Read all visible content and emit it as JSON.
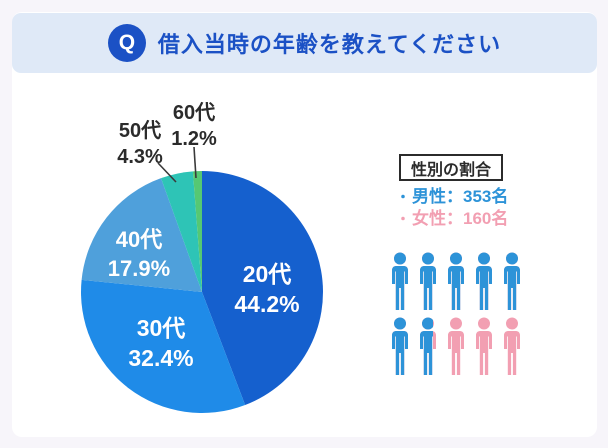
{
  "header": {
    "q_badge": "Q",
    "title": "借入当時の年齢を教えてください"
  },
  "chart_data": {
    "type": "pie",
    "title": "借入当時の年齢を教えてください",
    "unit": "%",
    "start_angle_deg": 0,
    "direction": "clockwise",
    "slices": [
      {
        "label": "20代",
        "value": 44.2,
        "pct_label": "44.2%",
        "color": "#1560ce",
        "label_position": "inside"
      },
      {
        "label": "30代",
        "value": 32.4,
        "pct_label": "32.4%",
        "color": "#1f8be8",
        "label_position": "inside"
      },
      {
        "label": "40代",
        "value": 17.9,
        "pct_label": "17.9%",
        "color": "#4fa0db",
        "label_position": "inside"
      },
      {
        "label": "50代",
        "value": 4.3,
        "pct_label": "4.3%",
        "color": "#2ec4b6",
        "label_position": "outside"
      },
      {
        "label": "60代",
        "value": 1.2,
        "pct_label": "1.2%",
        "color": "#55c873",
        "label_position": "outside"
      }
    ]
  },
  "gender_panel": {
    "box_title": "性別の割合",
    "legend": [
      {
        "bullet": "・",
        "label": "男性：353名",
        "color": "#2d93d8"
      },
      {
        "bullet": "・",
        "label": "女性：160名",
        "color": "#f29fb2"
      }
    ],
    "pictogram": {
      "total_icons": 10,
      "male_filled_icons": 6.7,
      "male_count": 353,
      "female_count": 160,
      "male_color": "#2d93d8",
      "female_color": "#f29fb2"
    }
  },
  "colors": {
    "page_background": "#f7f5fa",
    "card_background": "#ffffff",
    "header_bar": "#dfe9f7",
    "accent_blue": "#1b51c5",
    "outside_label_text": "#2b2b2b",
    "leader_line": "#3a3a3a"
  }
}
